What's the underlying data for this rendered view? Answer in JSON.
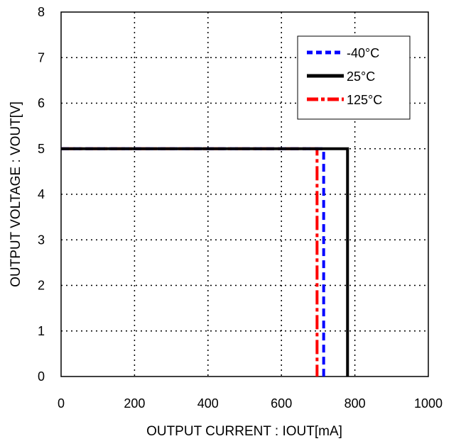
{
  "chart_data": {
    "type": "line",
    "title": "",
    "xlabel": "OUTPUT CURRENT : IOUT[mA]",
    "ylabel": "OUTPUT VOLTAGE : VOUT[V]",
    "xlim": [
      0,
      1000
    ],
    "ylim": [
      0,
      8
    ],
    "xticks": [
      0,
      200,
      400,
      600,
      800,
      1000
    ],
    "yticks": [
      0,
      1,
      2,
      3,
      4,
      5,
      6,
      7,
      8
    ],
    "xtick_labels": [
      "0",
      "200",
      "400",
      "600",
      "800",
      "1000"
    ],
    "ytick_labels": [
      "0",
      "1",
      "2",
      "3",
      "4",
      "5",
      "6",
      "7",
      "8"
    ],
    "grid": true,
    "legend_position": "top-right",
    "series": [
      {
        "name": "-40°C",
        "color": "#0000ff",
        "style": "dashed",
        "points": [
          [
            0,
            5
          ],
          [
            715,
            5
          ],
          [
            715,
            0
          ]
        ]
      },
      {
        "name": "25°C",
        "color": "#000000",
        "style": "solid",
        "points": [
          [
            0,
            5
          ],
          [
            780,
            5
          ],
          [
            780,
            0
          ]
        ]
      },
      {
        "name": "125°C",
        "color": "#ff0000",
        "style": "dashdot",
        "points": [
          [
            0,
            5
          ],
          [
            697,
            5
          ],
          [
            697,
            0
          ]
        ]
      }
    ]
  }
}
